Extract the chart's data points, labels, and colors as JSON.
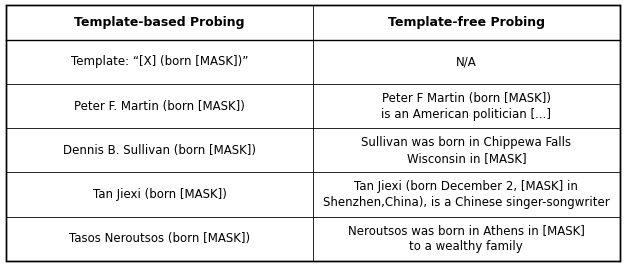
{
  "title_left": "Template-based Probing",
  "title_right": "Template-free Probing",
  "rows": [
    {
      "left": "Template: “[X] (born [MASK])”",
      "right": "N/A"
    },
    {
      "left": "Peter F. Martin (born [MASK])",
      "right": "Peter F Martin (born [MASK])\nis an American politician [...]"
    },
    {
      "left": "Dennis B. Sullivan (born [MASK])",
      "right": "Sullivan was born in Chippewa Falls\nWisconsin in [MASK]"
    },
    {
      "left": "Tan Jiexi (born [MASK])",
      "right": "Tan Jiexi (born December 2, [MASK] in\nShenzhen,China), is a Chinese singer-songwriter"
    },
    {
      "left": "Tasos Neroutsos (born [MASK])",
      "right": "Neroutsos was born in Athens in [MASK]\nto a wealthy family"
    }
  ],
  "bg_color": "#ffffff",
  "border_color": "#000000",
  "text_color": "#000000",
  "font_size": 8.5,
  "header_font_size": 9.0,
  "fig_width": 6.26,
  "fig_height": 2.66,
  "dpi": 100
}
